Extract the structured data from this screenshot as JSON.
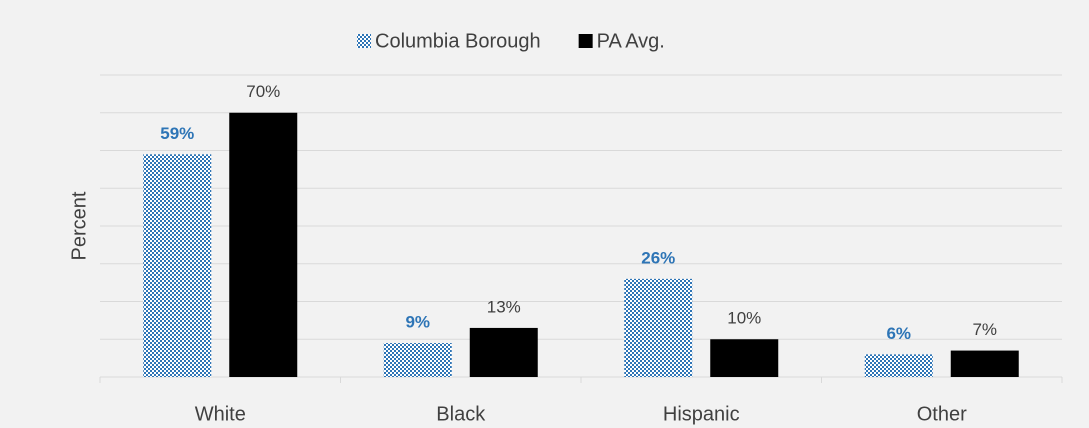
{
  "chart_data": {
    "type": "bar",
    "y_label": "Percent",
    "categories": [
      "White",
      "Black",
      "Hispanic",
      "Other"
    ],
    "series": [
      {
        "name": "Columbia Borough",
        "color": "#2e75b6",
        "pattern": "checkered",
        "values": [
          59,
          9,
          26,
          6
        ],
        "value_labels": [
          "59%",
          "9%",
          "26%",
          "6%"
        ]
      },
      {
        "name": "PA Avg.",
        "color": "#000000",
        "values": [
          70,
          13,
          10,
          7
        ],
        "value_labels": [
          "70%",
          "13%",
          "10%",
          "7%"
        ]
      }
    ],
    "ylim": [
      0,
      80
    ],
    "yticks": [
      0,
      10,
      20,
      30,
      40,
      50,
      60,
      70,
      80
    ],
    "grid": true,
    "legend": "top"
  }
}
